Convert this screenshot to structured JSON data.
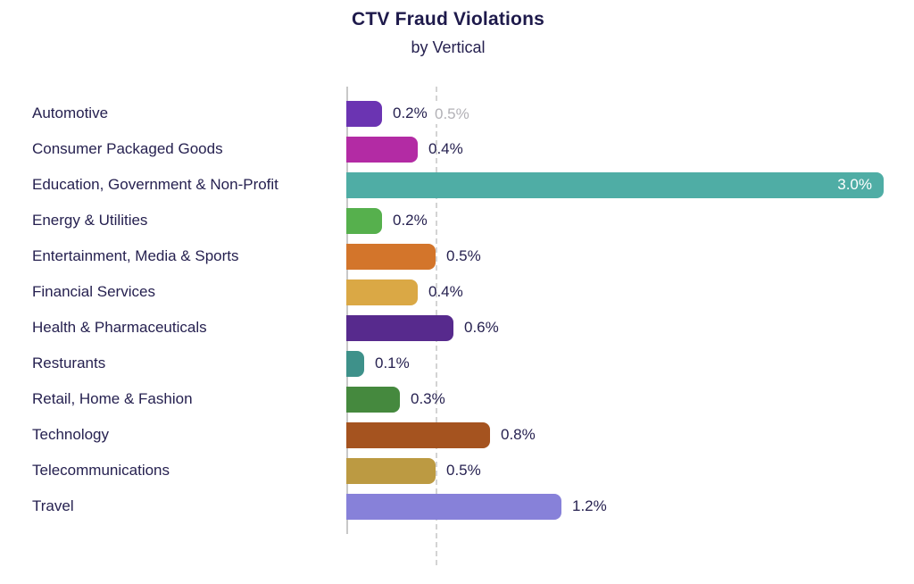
{
  "header": {
    "title": "CTV Fraud Violations",
    "subtitle": "by Vertical"
  },
  "chart_data": {
    "type": "bar",
    "orientation": "horizontal",
    "title": "CTV Fraud Violations",
    "subtitle": "by Vertical",
    "unit": "%",
    "xlim": [
      0,
      3.0
    ],
    "grid": false,
    "legend": "none",
    "categories": [
      "Automotive",
      "Consumer Packaged Goods",
      "Education, Government & Non-Profit",
      "Energy & Utilities",
      "Entertainment, Media & Sports",
      "Financial Services",
      "Health & Pharmaceuticals",
      "Resturants",
      "Retail, Home & Fashion",
      "Technology",
      "Telecommunications",
      "Travel"
    ],
    "values": [
      0.2,
      0.4,
      3.0,
      0.2,
      0.5,
      0.4,
      0.6,
      0.1,
      0.3,
      0.8,
      0.5,
      1.2
    ],
    "value_labels": [
      "0.2%",
      "0.4%",
      "3.0%",
      "0.2%",
      "0.5%",
      "0.4%",
      "0.6%",
      "0.1%",
      "0.3%",
      "0.8%",
      "0.5%",
      "1.2%"
    ],
    "value_label_inside": [
      false,
      false,
      true,
      false,
      false,
      false,
      false,
      false,
      false,
      false,
      false,
      false
    ],
    "bar_colors": [
      "#6b34b2",
      "#b32ba4",
      "#4fada5",
      "#56b04d",
      "#d3752b",
      "#daa845",
      "#572a8d",
      "#3e918a",
      "#45893e",
      "#a5531f",
      "#bc9a42",
      "#8781d9"
    ],
    "reference_line": {
      "value": 0.5,
      "label": "0.5%",
      "style": "dashed",
      "label_color": "#b2b1b6",
      "line_color": "#d4d4d4"
    }
  },
  "colors": {
    "background": "#ffffff",
    "title_text": "#1e1a4b",
    "label_text": "#262150",
    "axis_line": "#c8c8c8"
  }
}
